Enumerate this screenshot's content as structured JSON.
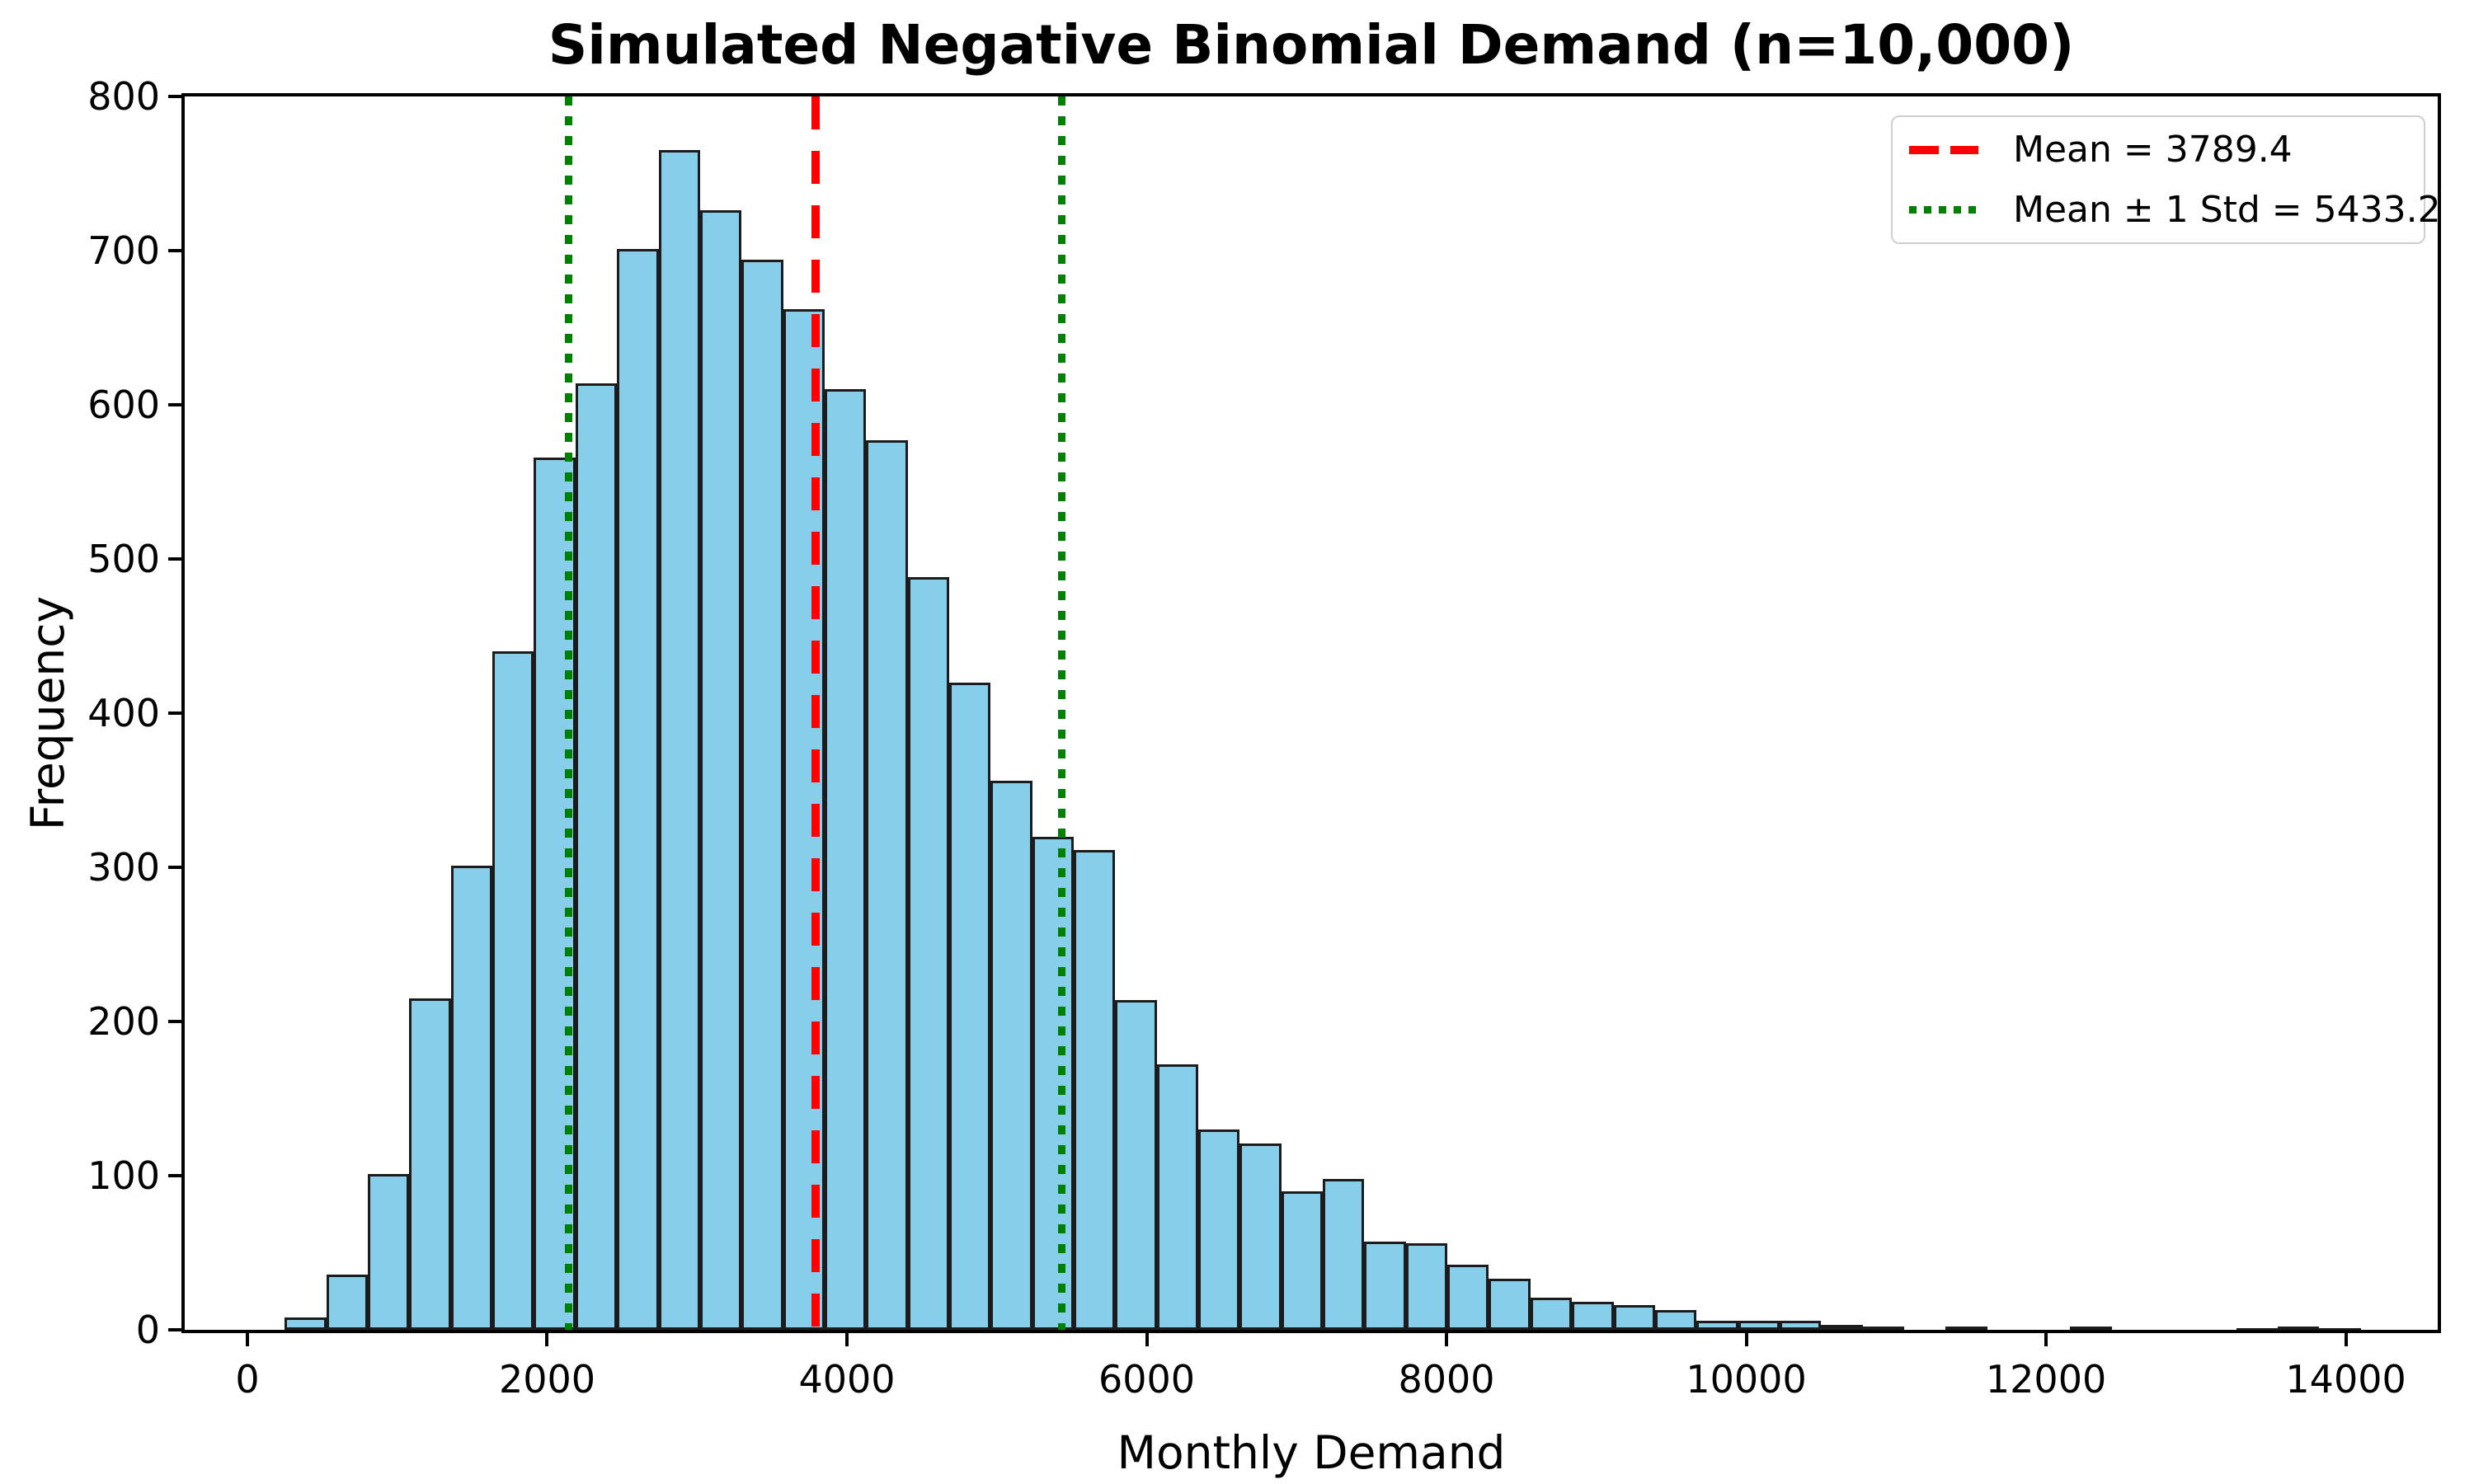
{
  "chart_data": {
    "type": "bar",
    "subtype": "histogram",
    "title": "Simulated Negative Binomial Demand (n=10,000)",
    "xlabel": "Monthly Demand",
    "ylabel": "Frequency",
    "sample_size": 10000,
    "bins": 50,
    "bin_start": 250,
    "bin_width": 277,
    "frequencies": [
      8,
      36,
      101,
      215,
      301,
      440,
      566,
      614,
      701,
      765,
      726,
      694,
      662,
      610,
      577,
      488,
      420,
      356,
      320,
      311,
      214,
      172,
      130,
      121,
      90,
      98,
      57,
      56,
      42,
      33,
      21,
      18,
      16,
      13,
      6,
      6,
      6,
      3,
      2,
      0,
      2,
      0,
      0,
      2,
      0,
      0,
      0,
      1,
      2,
      1
    ],
    "mean": 3789.4,
    "std": 1643.8,
    "mean_line_value": 3789.4,
    "std_line_values": [
      2145.6,
      5433.2
    ],
    "xlim": [
      -418,
      14613
    ],
    "ylim": [
      0,
      800
    ],
    "x_ticks": [
      0,
      2000,
      4000,
      6000,
      8000,
      10000,
      12000,
      14000
    ],
    "y_ticks": [
      0,
      100,
      200,
      300,
      400,
      500,
      600,
      700,
      800
    ],
    "grid": false,
    "bar_color": "#87CEEB",
    "bar_edge_color": "#1c1c1c",
    "mean_line_color": "#ff0000",
    "std_line_color": "#008000",
    "legend": {
      "position": "upper right",
      "items": [
        {
          "label": "Mean = 3789.4",
          "color": "#ff0000",
          "style": "dashed"
        },
        {
          "label": "Mean ± 1 Std = 5433.2",
          "color": "#008000",
          "style": "dotted"
        }
      ]
    }
  }
}
